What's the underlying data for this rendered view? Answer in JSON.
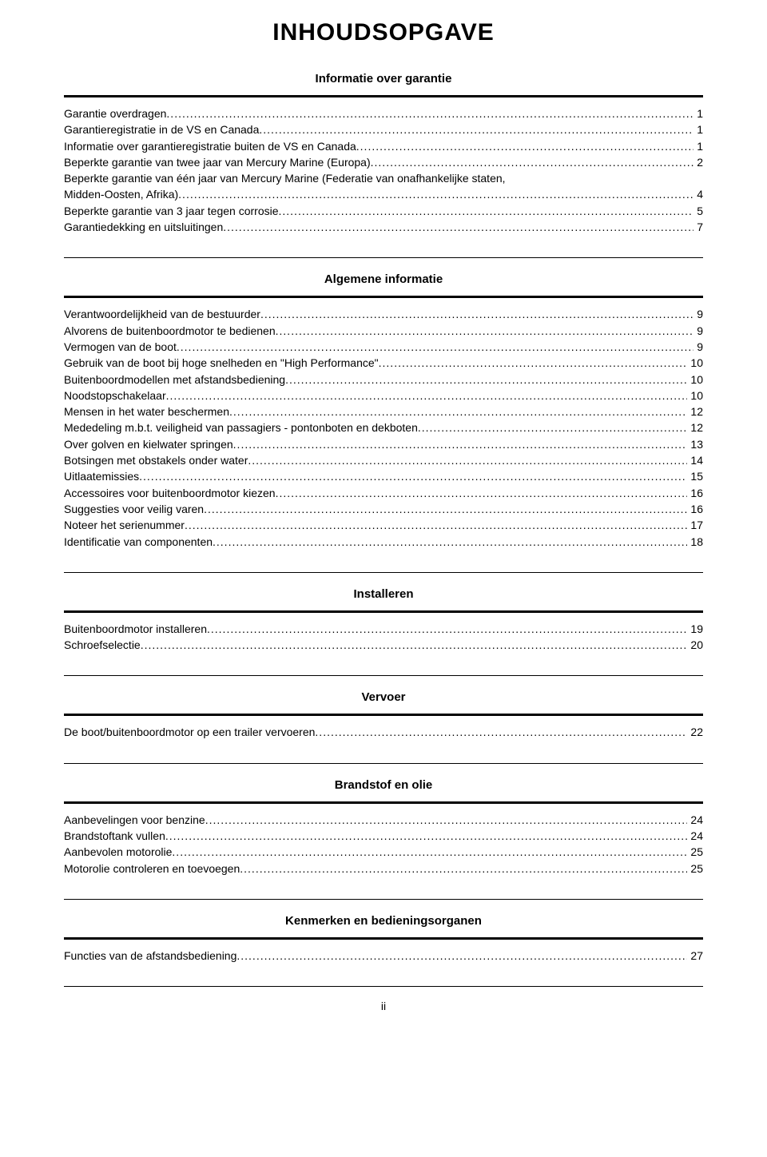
{
  "title": "INHOUDSOPGAVE",
  "pageNumber": "ii",
  "sections": [
    {
      "heading": "Informatie over garantie",
      "items": [
        {
          "text": "Garantie overdragen",
          "page": "1"
        },
        {
          "text": "Garantieregistratie in de VS en Canada",
          "page": "1"
        },
        {
          "text": "Informatie over garantieregistratie buiten de VS en Canada",
          "page": "1"
        },
        {
          "text": "Beperkte garantie van twee jaar van Mercury Marine (Europa)",
          "page": "2"
        },
        {
          "text": "Beperkte garantie van één jaar van Mercury Marine (Federatie van onafhankelijke staten, Midden‑Oosten, Afrika)",
          "page": "4"
        },
        {
          "text": "Beperkte garantie van 3 jaar tegen corrosie",
          "page": "5"
        },
        {
          "text": "Garantiedekking en uitsluitingen",
          "page": "7"
        }
      ]
    },
    {
      "heading": "Algemene informatie",
      "items": [
        {
          "text": "Verantwoordelijkheid van de bestuurder",
          "page": "9"
        },
        {
          "text": "Alvorens de buitenboordmotor te bedienen",
          "page": "9"
        },
        {
          "text": "Vermogen van de boot",
          "page": "9"
        },
        {
          "text": "Gebruik van de boot bij hoge snelheden en \"High Performance\"",
          "page": "10"
        },
        {
          "text": "Buitenboordmodellen met afstandsbediening",
          "page": "10"
        },
        {
          "text": "Noodstopschakelaar",
          "page": "10"
        },
        {
          "text": "Mensen in het water beschermen",
          "page": "12"
        },
        {
          "text": "Mededeling m.b.t. veiligheid van passagiers ‑ pontonboten en dekboten",
          "page": "12"
        },
        {
          "text": "Over golven en kielwater springen",
          "page": "13"
        },
        {
          "text": "Botsingen met obstakels onder water",
          "page": "14"
        },
        {
          "text": "Uitlaatemissies",
          "page": "15"
        },
        {
          "text": "Accessoires voor buitenboordmotor kiezen",
          "page": "16"
        },
        {
          "text": "Suggesties voor veilig varen",
          "page": "16"
        },
        {
          "text": "Noteer het serienummer",
          "page": "17"
        },
        {
          "text": "Identificatie van componenten",
          "page": "18"
        }
      ]
    },
    {
      "heading": "Installeren",
      "items": [
        {
          "text": "Buitenboordmotor installeren",
          "page": "19"
        },
        {
          "text": "Schroefselectie",
          "page": "20"
        }
      ]
    },
    {
      "heading": "Vervoer",
      "items": [
        {
          "text": "De boot/buitenboordmotor op een trailer vervoeren",
          "page": "22"
        }
      ]
    },
    {
      "heading": "Brandstof en olie",
      "items": [
        {
          "text": "Aanbevelingen voor benzine",
          "page": "24"
        },
        {
          "text": "Brandstoftank vullen",
          "page": "24"
        },
        {
          "text": "Aanbevolen motorolie",
          "page": "25"
        },
        {
          "text": "Motorolie controleren en toevoegen",
          "page": "25"
        }
      ]
    },
    {
      "heading": "Kenmerken en bedieningsorganen",
      "items": [
        {
          "text": "Functies van de afstandsbediening",
          "page": "27"
        }
      ]
    }
  ]
}
